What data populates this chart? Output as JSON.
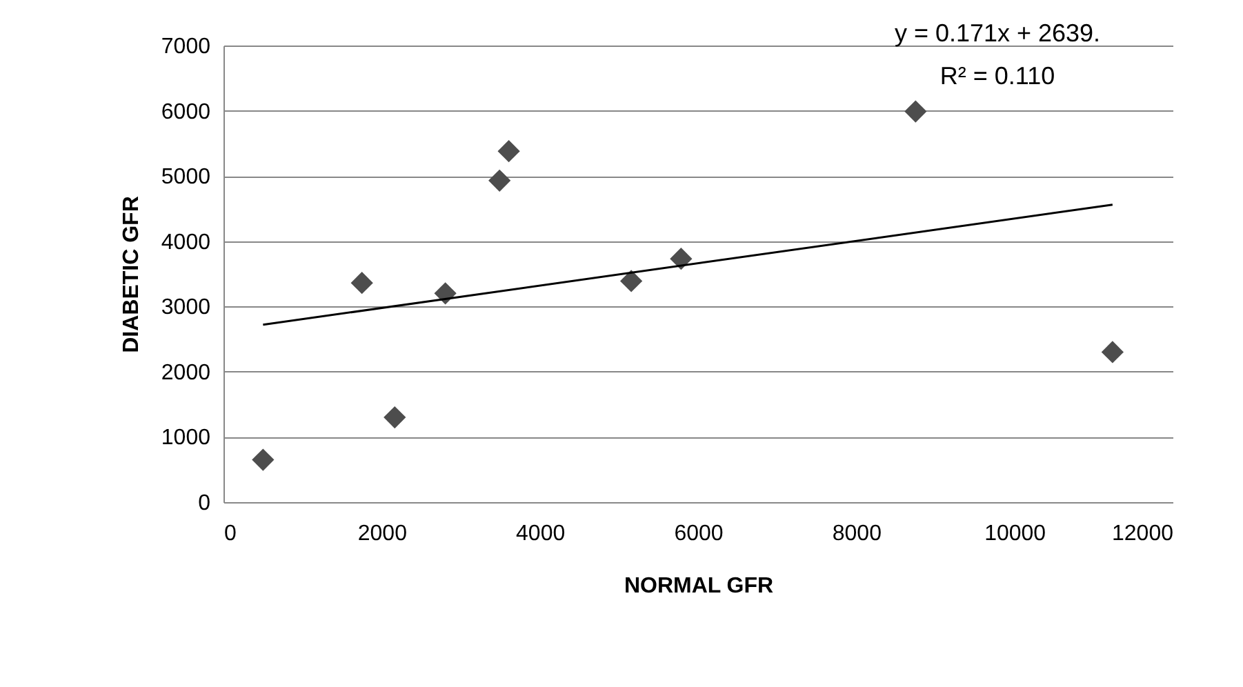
{
  "chart_data": {
    "type": "scatter",
    "xlabel": "NORMAL GFR",
    "ylabel": "DIABETIC GFR",
    "annotations": [
      "y = 0.171x + 2639.",
      "R² = 0.110"
    ],
    "x": [
      500,
      1750,
      2165,
      2805,
      3490,
      3607,
      5155,
      5785,
      8750,
      11240
    ],
    "series": [
      {
        "color": "#4d4d4d",
        "marker": "diamond",
        "values": [
          650,
          3360,
          1300,
          3200,
          4930,
          5380,
          3390,
          3730,
          5990,
          2300
        ]
      },
      {
        "type": "line",
        "color": "#000000",
        "marker": "none",
        "x": [
          500,
          11240
        ],
        "values": [
          2720,
          4560
        ]
      }
    ],
    "xlim": [
      0,
      12000
    ],
    "xticks": [
      0,
      2000,
      4000,
      6000,
      8000,
      10000,
      12000
    ],
    "ylim": [
      0,
      7000
    ],
    "yticks": [
      0,
      1000,
      2000,
      3000,
      4000,
      5000,
      6000,
      7000
    ],
    "grid": "y"
  }
}
